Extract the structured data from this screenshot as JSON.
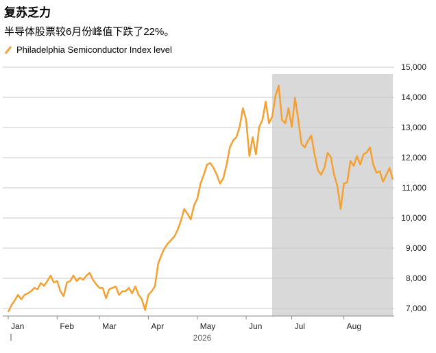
{
  "chart_data": {
    "type": "line",
    "title": "复苏乏力",
    "subtitle": "半导体股票较6月份峰值下跌了22%。",
    "year_label": "2026",
    "shade": [
      81,
      118
    ],
    "series": [
      {
        "name": "Philadelphia Semiconductor Index level",
        "color": "#f5a030",
        "values": [
          6886,
          7114,
          7270,
          7450,
          7300,
          7450,
          7500,
          7570,
          7680,
          7640,
          7840,
          7750,
          7910,
          8090,
          7860,
          7910,
          7570,
          7410,
          7860,
          7910,
          8090,
          7910,
          8020,
          7950,
          8090,
          8180,
          7950,
          7800,
          7680,
          7680,
          7340,
          7640,
          7680,
          7730,
          7450,
          7570,
          7570,
          7680,
          7500,
          7730,
          7450,
          7300,
          6950,
          7450,
          7570,
          7730,
          8480,
          8770,
          9000,
          9160,
          9270,
          9390,
          9610,
          9910,
          10300,
          10140,
          9950,
          10410,
          10640,
          11140,
          11430,
          11770,
          11820,
          11660,
          11430,
          11140,
          11320,
          11770,
          12340,
          12570,
          12680,
          13020,
          13640,
          13250,
          12050,
          12680,
          12110,
          13020,
          13250,
          13860,
          13140,
          13360,
          14050,
          14390,
          13250,
          13140,
          13640,
          13020,
          13980,
          13250,
          12450,
          12340,
          12570,
          12730,
          12110,
          11590,
          11430,
          11660,
          12160,
          12020,
          11430,
          11050,
          10300,
          11140,
          11180,
          11890,
          11730,
          12050,
          11770,
          12110,
          12180,
          12340,
          11770,
          11500,
          11550,
          11200,
          11430,
          11660,
          11270
        ]
      }
    ],
    "xlim": [
      0,
      118
    ],
    "xticks": [
      {
        "value": 0,
        "label": "Jan"
      },
      {
        "value": 15,
        "label": "Feb"
      },
      {
        "value": 28,
        "label": "Mar"
      },
      {
        "value": 43,
        "label": "Apr"
      },
      {
        "value": 58,
        "label": "May"
      },
      {
        "value": 73,
        "label": "Jun"
      },
      {
        "value": 87,
        "label": "Jul"
      },
      {
        "value": 103,
        "label": "Aug"
      }
    ],
    "ylim": [
      6750,
      15000
    ],
    "yticks": [
      {
        "value": 7000,
        "label": "7,000"
      },
      {
        "value": 8000,
        "label": "8,000"
      },
      {
        "value": 9000,
        "label": "9,000"
      },
      {
        "value": 10000,
        "label": "10,000"
      },
      {
        "value": 11000,
        "label": "11,000"
      },
      {
        "value": 12000,
        "label": "12,000"
      },
      {
        "value": 13000,
        "label": "13,000"
      },
      {
        "value": 14000,
        "label": "14,000"
      },
      {
        "value": 15000,
        "label": "15,000"
      }
    ],
    "grid": true
  }
}
